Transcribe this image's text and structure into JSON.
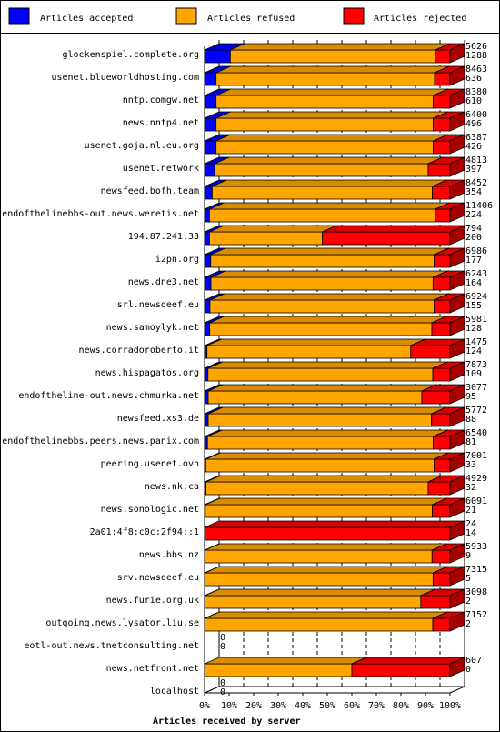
{
  "legend": {
    "accepted": {
      "label": "Articles accepted",
      "color": "#0000ff"
    },
    "refused": {
      "label": "Articles refused",
      "color": "#ffa500"
    },
    "rejected": {
      "label": "Articles rejected",
      "color": "#ff0000"
    }
  },
  "chart_data": {
    "type": "bar",
    "orientation": "horizontal",
    "stacked": true,
    "xlabel": "Articles received by server",
    "ylabel": "",
    "x_ticks": [
      "0%",
      "10%",
      "20%",
      "30%",
      "40%",
      "50%",
      "60%",
      "70%",
      "80%",
      "90%",
      "100%"
    ],
    "xlim": [
      0,
      100
    ],
    "grid": true,
    "legend_position": "top",
    "series": [
      {
        "name": "Articles accepted",
        "color": "#0000ff"
      },
      {
        "name": "Articles refused",
        "color": "#ffa500"
      },
      {
        "name": "Articles rejected",
        "color": "#ff0000"
      }
    ],
    "servers": [
      {
        "name": "glockenspiel.complete.org",
        "total": "5626",
        "accepted_or_rejected": "1288",
        "accepted_pct": 10.5,
        "refused_pct": 83.5,
        "rejected_pct": 6.0
      },
      {
        "name": "usenet.blueworldhosting.com",
        "total": "8463",
        "accepted_or_rejected": "636",
        "accepted_pct": 4.7,
        "refused_pct": 89.0,
        "rejected_pct": 6.3
      },
      {
        "name": "nntp.comgw.net",
        "total": "8380",
        "accepted_or_rejected": "610",
        "accepted_pct": 4.7,
        "refused_pct": 88.5,
        "rejected_pct": 6.8
      },
      {
        "name": "news.nntp4.net",
        "total": "6400",
        "accepted_or_rejected": "496",
        "accepted_pct": 4.7,
        "refused_pct": 88.5,
        "rejected_pct": 6.8
      },
      {
        "name": "usenet.goja.nl.eu.org",
        "total": "6387",
        "accepted_or_rejected": "426",
        "accepted_pct": 4.7,
        "refused_pct": 88.5,
        "rejected_pct": 6.8
      },
      {
        "name": "usenet.network",
        "total": "4813",
        "accepted_or_rejected": "397",
        "accepted_pct": 4.1,
        "refused_pct": 87.0,
        "rejected_pct": 8.9
      },
      {
        "name": "newsfeed.bofh.team",
        "total": "8452",
        "accepted_or_rejected": "354",
        "accepted_pct": 3.1,
        "refused_pct": 89.7,
        "rejected_pct": 7.2
      },
      {
        "name": "endofthelinebbs-out.news.weretis.net",
        "total": "11406",
        "accepted_or_rejected": "224",
        "accepted_pct": 2.0,
        "refused_pct": 92.0,
        "rejected_pct": 6.0
      },
      {
        "name": "194.87.241.33",
        "total": "794",
        "accepted_or_rejected": "200",
        "accepted_pct": 2.0,
        "refused_pct": 46.0,
        "rejected_pct": 52.0
      },
      {
        "name": "i2pn.org",
        "total": "6986",
        "accepted_or_rejected": "177",
        "accepted_pct": 2.5,
        "refused_pct": 91.0,
        "rejected_pct": 6.5
      },
      {
        "name": "news.dne3.net",
        "total": "6243",
        "accepted_or_rejected": "164",
        "accepted_pct": 2.6,
        "refused_pct": 90.5,
        "rejected_pct": 6.9
      },
      {
        "name": "srl.newsdeef.eu",
        "total": "6924",
        "accepted_or_rejected": "155",
        "accepted_pct": 2.2,
        "refused_pct": 91.3,
        "rejected_pct": 6.5
      },
      {
        "name": "news.samoylyk.net",
        "total": "5981",
        "accepted_or_rejected": "128",
        "accepted_pct": 2.1,
        "refused_pct": 90.5,
        "rejected_pct": 7.4
      },
      {
        "name": "news.corradoroberto.it",
        "total": "1475",
        "accepted_or_rejected": "124",
        "accepted_pct": 1.0,
        "refused_pct": 83.0,
        "rejected_pct": 16.0
      },
      {
        "name": "news.hispagatos.org",
        "total": "7873",
        "accepted_or_rejected": "109",
        "accepted_pct": 1.4,
        "refused_pct": 91.6,
        "rejected_pct": 7.0
      },
      {
        "name": "endoftheline-out.news.chmurka.net",
        "total": "3077",
        "accepted_or_rejected": "95",
        "accepted_pct": 1.5,
        "refused_pct": 87.0,
        "rejected_pct": 11.5
      },
      {
        "name": "newsfeed.xs3.de",
        "total": "5772",
        "accepted_or_rejected": "88",
        "accepted_pct": 1.5,
        "refused_pct": 91.0,
        "rejected_pct": 7.5
      },
      {
        "name": "endofthelinebbs.peers.news.panix.com",
        "total": "6540",
        "accepted_or_rejected": "81",
        "accepted_pct": 1.2,
        "refused_pct": 92.0,
        "rejected_pct": 6.8
      },
      {
        "name": "peering.usenet.ovh",
        "total": "7001",
        "accepted_or_rejected": "33",
        "accepted_pct": 0.5,
        "refused_pct": 93.0,
        "rejected_pct": 6.5
      },
      {
        "name": "news.nk.ca",
        "total": "4929",
        "accepted_or_rejected": "32",
        "accepted_pct": 0.6,
        "refused_pct": 90.5,
        "rejected_pct": 8.9
      },
      {
        "name": "news.sonologic.net",
        "total": "6091",
        "accepted_or_rejected": "21",
        "accepted_pct": 0.3,
        "refused_pct": 92.5,
        "rejected_pct": 7.2
      },
      {
        "name": "2a01:4f8:c0c:2f94::1",
        "total": "24",
        "accepted_or_rejected": "14",
        "accepted_pct": 0.0,
        "refused_pct": 0.0,
        "rejected_pct": 100.0
      },
      {
        "name": "news.bbs.nz",
        "total": "5933",
        "accepted_or_rejected": "9",
        "accepted_pct": 0.2,
        "refused_pct": 92.5,
        "rejected_pct": 7.3
      },
      {
        "name": "srv.newsdeef.eu",
        "total": "7315",
        "accepted_or_rejected": "5",
        "accepted_pct": 0.1,
        "refused_pct": 93.0,
        "rejected_pct": 6.9
      },
      {
        "name": "news.furie.org.uk",
        "total": "3098",
        "accepted_or_rejected": "2",
        "accepted_pct": 0.1,
        "refused_pct": 88.0,
        "rejected_pct": 11.9
      },
      {
        "name": "outgoing.news.lysator.liu.se",
        "total": "7152",
        "accepted_or_rejected": "2",
        "accepted_pct": 0.1,
        "refused_pct": 92.9,
        "rejected_pct": 7.0
      },
      {
        "name": "eotl-out.news.tnetconsulting.net",
        "total": "0",
        "accepted_or_rejected": "0",
        "accepted_pct": 0,
        "refused_pct": 0,
        "rejected_pct": 0
      },
      {
        "name": "news.netfront.net",
        "total": "607",
        "accepted_or_rejected": "0",
        "accepted_pct": 0.0,
        "refused_pct": 60.0,
        "rejected_pct": 40.0
      },
      {
        "name": "localhost",
        "total": "0",
        "accepted_or_rejected": "0",
        "accepted_pct": 0,
        "refused_pct": 0,
        "rejected_pct": 0
      }
    ]
  }
}
